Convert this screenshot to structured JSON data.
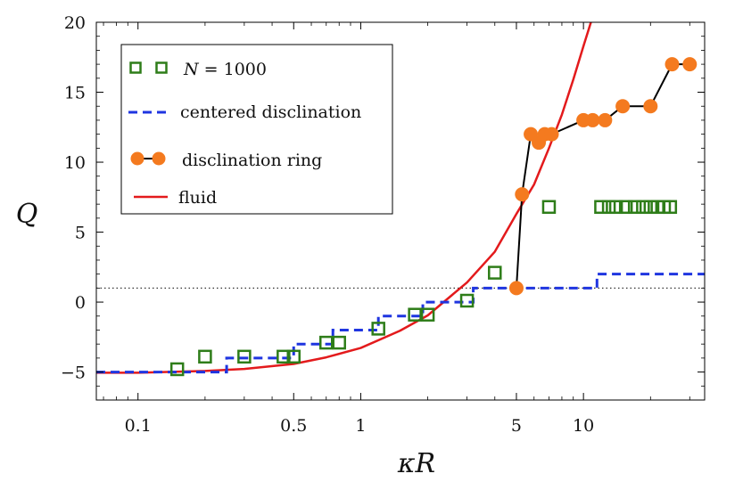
{
  "chart_data": {
    "type": "scatter",
    "x_scale": "log",
    "xlabel": "κR",
    "ylabel": "Q",
    "xlim": [
      0.065,
      35
    ],
    "ylim": [
      -7,
      20
    ],
    "xticks": [
      {
        "value": 0.1,
        "label": "0.1"
      },
      {
        "value": 0.5,
        "label": "0.5"
      },
      {
        "value": 1,
        "label": "1"
      },
      {
        "value": 5,
        "label": "5"
      },
      {
        "value": 10,
        "label": "10"
      }
    ],
    "yticks": [
      {
        "value": -5,
        "label": "−5"
      },
      {
        "value": 0,
        "label": "0"
      },
      {
        "value": 5,
        "label": "5"
      },
      {
        "value": 10,
        "label": "10"
      },
      {
        "value": 15,
        "label": "15"
      },
      {
        "value": 20,
        "label": "20"
      }
    ],
    "reference_line": {
      "y": 1,
      "style": "dotted"
    },
    "legend_position": "top-left",
    "series": [
      {
        "name": "N = 1000",
        "legend_label_prefix": "N",
        "legend_label_suffix": " = 1000",
        "kind": "markers",
        "marker": "open-square",
        "color": "#2e7d19",
        "points": [
          [
            0.15,
            -4.8
          ],
          [
            0.2,
            -3.9
          ],
          [
            0.3,
            -3.9
          ],
          [
            0.45,
            -3.9
          ],
          [
            0.5,
            -3.9
          ],
          [
            0.7,
            -2.9
          ],
          [
            0.8,
            -2.9
          ],
          [
            1.2,
            -1.9
          ],
          [
            1.75,
            -0.9
          ],
          [
            2.0,
            -0.9
          ],
          [
            3.0,
            0.1
          ],
          [
            4.0,
            2.1
          ],
          [
            7.0,
            6.8
          ],
          [
            12.0,
            6.8
          ],
          [
            13.0,
            6.8
          ],
          [
            14.0,
            6.8
          ],
          [
            15.5,
            6.8
          ],
          [
            17.0,
            6.8
          ],
          [
            18.5,
            6.8
          ],
          [
            20.0,
            6.8
          ],
          [
            21.5,
            6.8
          ],
          [
            23.0,
            6.8
          ],
          [
            24.5,
            6.8
          ]
        ]
      },
      {
        "name": "centered disclination",
        "kind": "step",
        "color": "#1f35e0",
        "dash": "dashed",
        "points": [
          [
            0.065,
            -5.0
          ],
          [
            0.25,
            -5.0
          ],
          [
            0.25,
            -4.0
          ],
          [
            0.5,
            -4.0
          ],
          [
            0.5,
            -3.0
          ],
          [
            0.75,
            -3.0
          ],
          [
            0.75,
            -2.0
          ],
          [
            1.2,
            -2.0
          ],
          [
            1.2,
            -1.0
          ],
          [
            1.9,
            -1.0
          ],
          [
            1.9,
            0.0
          ],
          [
            3.2,
            0.0
          ],
          [
            3.2,
            1.0
          ],
          [
            11.5,
            1.0
          ],
          [
            11.5,
            2.0
          ],
          [
            35,
            2.0
          ]
        ]
      },
      {
        "name": "disclination ring",
        "kind": "line+markers",
        "marker": "filled-circle",
        "marker_color": "#f47a1f",
        "line_color": "#000000",
        "points": [
          [
            5.0,
            1.0
          ],
          [
            5.3,
            7.7
          ],
          [
            5.8,
            12.0
          ],
          [
            6.3,
            11.4
          ],
          [
            6.7,
            12.0
          ],
          [
            7.2,
            12.0
          ],
          [
            10.0,
            13.0
          ],
          [
            11.0,
            13.0
          ],
          [
            12.5,
            13.0
          ],
          [
            15.0,
            14.0
          ],
          [
            20.0,
            14.0
          ],
          [
            25.0,
            17.0
          ],
          [
            30.0,
            17.0
          ]
        ]
      },
      {
        "name": "fluid",
        "kind": "line",
        "color": "#e31a1c",
        "points": [
          [
            0.065,
            -5.05
          ],
          [
            0.1,
            -5.05
          ],
          [
            0.2,
            -4.92
          ],
          [
            0.3,
            -4.78
          ],
          [
            0.5,
            -4.42
          ],
          [
            0.7,
            -3.95
          ],
          [
            1.0,
            -3.28
          ],
          [
            1.5,
            -2.05
          ],
          [
            2.0,
            -0.95
          ],
          [
            3.0,
            1.4
          ],
          [
            4.0,
            3.6
          ],
          [
            5.0,
            6.3
          ],
          [
            6.0,
            8.4
          ],
          [
            7.0,
            11.0
          ],
          [
            8.0,
            13.4
          ],
          [
            9.0,
            15.9
          ],
          [
            10.0,
            18.3
          ],
          [
            10.8,
            20.0
          ]
        ]
      }
    ]
  }
}
